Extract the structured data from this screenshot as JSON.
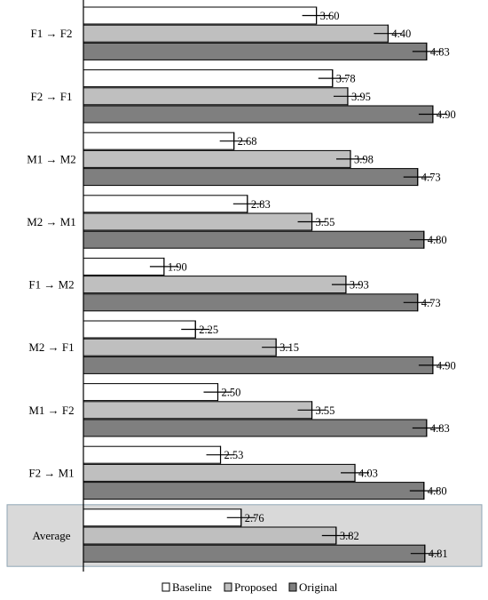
{
  "chart_data": {
    "type": "bar",
    "orientation": "horizontal",
    "categories": [
      "F1 → F2",
      "F2 → F1",
      "M1 → M2",
      "M2 → M1",
      "F1 → M2",
      "M2 → F1",
      "M1 → F2",
      "F2 → M1",
      "Average"
    ],
    "series": [
      {
        "name": "Baseline",
        "color": "#ffffff",
        "values": [
          3.6,
          3.78,
          2.68,
          2.83,
          1.9,
          2.25,
          2.5,
          2.53,
          2.76
        ],
        "labels": [
          "3.60",
          "3.78",
          "2.68",
          "2.83",
          "1.90",
          "2.25",
          "2.50",
          "2.53",
          "2.76"
        ]
      },
      {
        "name": "Proposed",
        "color": "#bfbfbf",
        "values": [
          4.4,
          3.95,
          3.98,
          3.55,
          3.93,
          3.15,
          3.55,
          4.03,
          3.82
        ],
        "labels": [
          "4.40",
          "3.95",
          "3.98",
          "3.55",
          "3.93",
          "3.15",
          "3.55",
          "4.03",
          "3.82"
        ]
      },
      {
        "name": "Original",
        "color": "#7f7f7f",
        "values": [
          4.83,
          4.9,
          4.73,
          4.8,
          4.73,
          4.9,
          4.83,
          4.8,
          4.81
        ],
        "labels": [
          "4.83",
          "4.90",
          "4.73",
          "4.80",
          "4.73",
          "4.90",
          "4.83",
          "4.80",
          "4.81"
        ]
      }
    ],
    "xlim": [
      1,
      5
    ],
    "error_bars": true,
    "highlight_category": "Average",
    "highlight_color": "#d9d9d9",
    "legend_position": "bottom",
    "grid": false
  }
}
